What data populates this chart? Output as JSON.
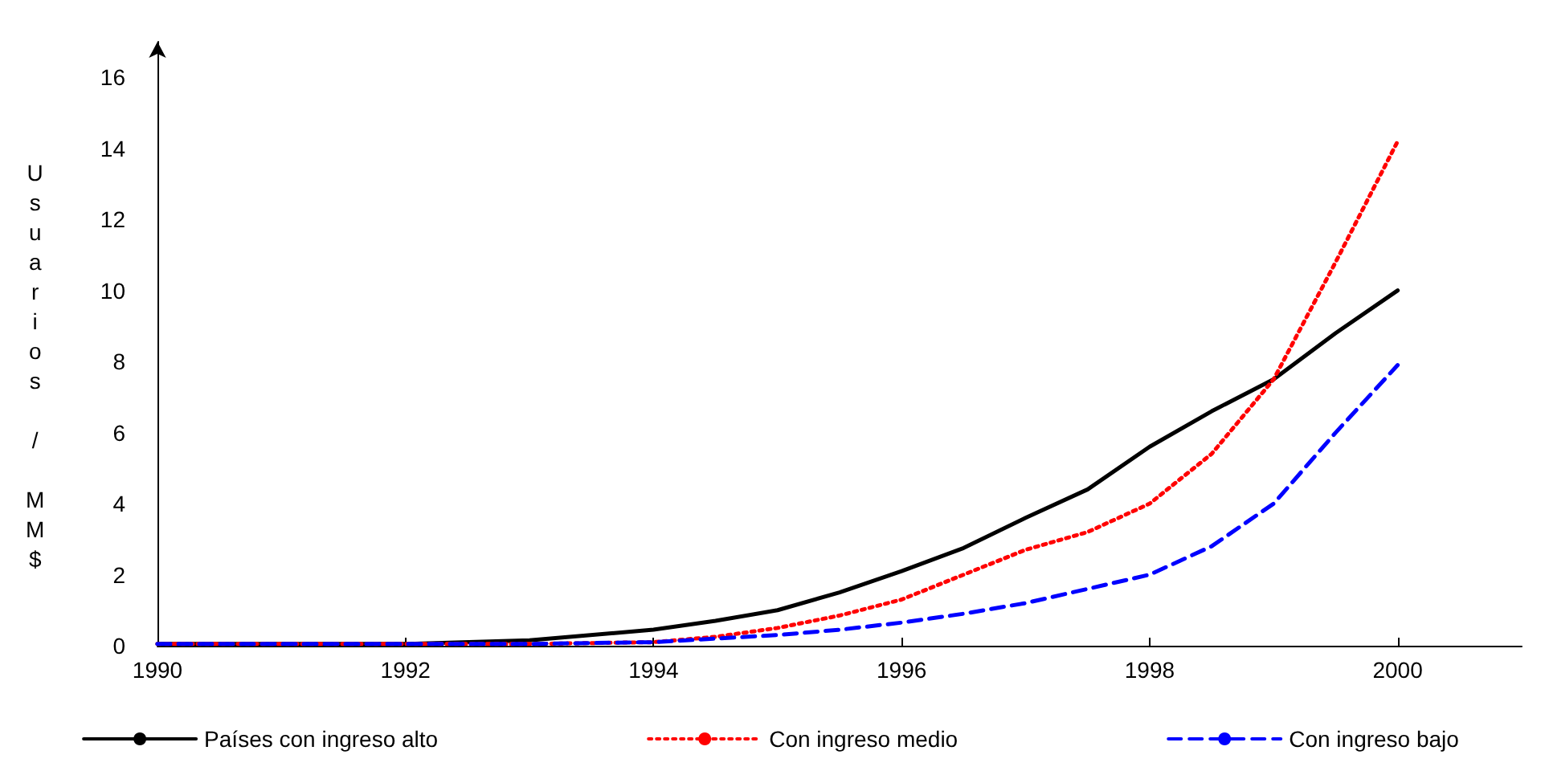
{
  "chart_data": {
    "type": "line",
    "ylabel": "Usuarios / MM$",
    "x": [
      1990,
      1991,
      1992,
      1993,
      1994,
      1994.5,
      1995,
      1995.5,
      1996,
      1996.5,
      1997,
      1997.5,
      1998,
      1998.5,
      1999,
      1999.5,
      2000
    ],
    "series": [
      {
        "name": "Países con ingreso alto",
        "color": "#000000",
        "line_style": "solid",
        "values": [
          0.05,
          0.05,
          0.05,
          0.15,
          0.45,
          0.7,
          1.0,
          1.5,
          2.1,
          2.75,
          3.6,
          4.4,
          5.6,
          6.6,
          7.5,
          8.8,
          10.0
        ]
      },
      {
        "name": "Con ingreso medio",
        "color": "#ff0000",
        "line_style": "dotted",
        "values": [
          0.05,
          0.05,
          0.05,
          0.05,
          0.1,
          0.25,
          0.5,
          0.85,
          1.3,
          2.0,
          2.7,
          3.2,
          4.0,
          5.4,
          7.5,
          10.8,
          14.2
        ]
      },
      {
        "name": "Con ingreso bajo",
        "color": "#0000ff",
        "line_style": "dashed",
        "values": [
          0.05,
          0.05,
          0.05,
          0.05,
          0.1,
          0.2,
          0.3,
          0.45,
          0.65,
          0.9,
          1.2,
          1.6,
          2.0,
          2.8,
          4.0,
          6.0,
          7.9
        ]
      }
    ],
    "xlim": [
      1990,
      2001
    ],
    "xticks": [
      1990,
      1992,
      1994,
      1996,
      1998,
      2000
    ],
    "ylim": [
      0,
      17
    ],
    "yticks": [
      0,
      2,
      4,
      6,
      8,
      10,
      12,
      14,
      16
    ],
    "grid": false,
    "legend": "bottom",
    "marker": "none"
  }
}
